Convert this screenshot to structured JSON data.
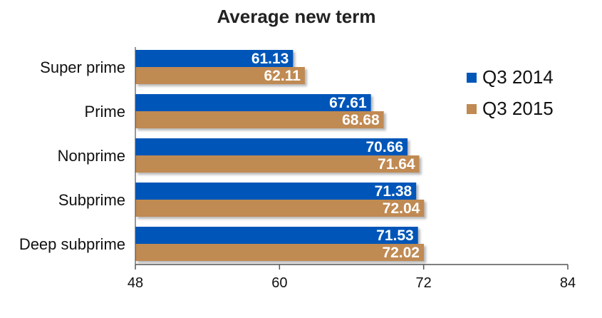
{
  "chart_data": {
    "type": "bar",
    "orientation": "horizontal",
    "title": "Average new term",
    "xlabel": "",
    "ylabel": "",
    "categories": [
      "Super prime",
      "Prime",
      "Nonprime",
      "Subprime",
      "Deep subprime"
    ],
    "series": [
      {
        "name": "Q3 2014",
        "color": "#0057b8",
        "values": [
          61.13,
          67.61,
          70.66,
          71.38,
          71.53
        ]
      },
      {
        "name": "Q3 2015",
        "color": "#c08a52",
        "values": [
          62.11,
          68.68,
          71.64,
          72.04,
          72.02
        ]
      }
    ],
    "xlim": [
      48,
      84
    ],
    "xticks": [
      "48",
      "60",
      "72",
      "84"
    ],
    "grid": false,
    "legend_position": "right"
  }
}
